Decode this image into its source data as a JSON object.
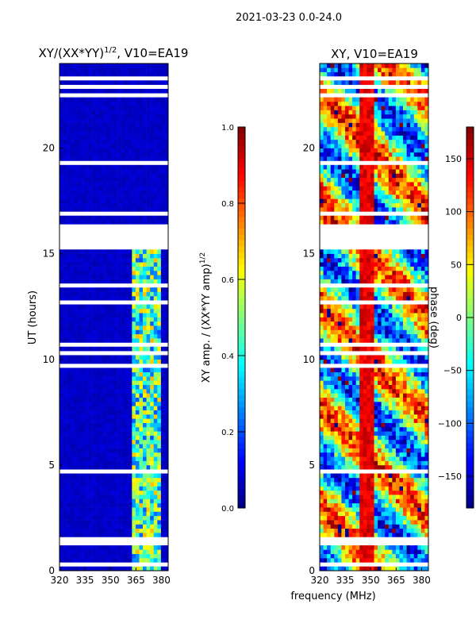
{
  "chart_data": [
    {
      "type": "heatmap",
      "title": "XY/(XX*YY)^1/2, V10=EA19",
      "title_main": "XY/(XX*YY)",
      "title_sup": "1/2",
      "title_tail": ", V10=EA19",
      "xlabel": "",
      "ylabel": "UT (hours)",
      "xlim": [
        320,
        384
      ],
      "ylim": [
        0,
        24
      ],
      "xticks": [
        "320",
        "335",
        "350",
        "365",
        "380"
      ],
      "xtick_values": [
        320,
        335,
        350,
        365,
        380
      ],
      "yticks": [
        "0",
        "5",
        "10",
        "15",
        "20"
      ],
      "ytick_values": [
        0,
        5,
        10,
        15,
        20
      ],
      "colorbar": {
        "label": "XY amp. / (XX*YY amp)",
        "label_sup": "1/2",
        "range": [
          0,
          1
        ],
        "ticks": [
          "0.0",
          "0.2",
          "0.4",
          "0.6",
          "0.8",
          "1.0"
        ],
        "tick_values": [
          0,
          0.2,
          0.4,
          0.6,
          0.8,
          1.0
        ],
        "colormap": "jet"
      },
      "background_value": 0.05,
      "high_band": {
        "freq": [
          362,
          380
        ],
        "ut": [
          0,
          15.2
        ],
        "value_range": [
          0.2,
          0.7
        ]
      },
      "flagged_ut": [
        [
          15.2,
          16.3
        ],
        [
          9.6,
          9.8
        ],
        [
          1.3,
          1.5
        ],
        [
          0.3,
          0.45
        ],
        [
          23.2,
          23.35
        ]
      ]
    },
    {
      "type": "heatmap",
      "title": "XY, V10=EA19",
      "xlabel": "frequency (MHz)",
      "ylabel": "",
      "xlim": [
        320,
        384
      ],
      "ylim": [
        0,
        24
      ],
      "xticks": [
        "320",
        "335",
        "350",
        "365",
        "380"
      ],
      "xtick_values": [
        320,
        335,
        350,
        365,
        380
      ],
      "yticks": [
        "0",
        "5",
        "10",
        "15",
        "20"
      ],
      "ytick_values": [
        0,
        5,
        10,
        15,
        20
      ],
      "colorbar": {
        "label": "phase (deg)",
        "range": [
          -180,
          180
        ],
        "ticks": [
          "−150",
          "−100",
          "−50",
          "0",
          "50",
          "100",
          "150"
        ],
        "tick_values": [
          -150,
          -100,
          -50,
          0,
          50,
          100,
          150
        ],
        "colormap": "jet"
      },
      "flagged_ut": [
        [
          15.2,
          16.3
        ],
        [
          9.6,
          9.8
        ],
        [
          1.3,
          1.5
        ],
        [
          0.3,
          0.45
        ],
        [
          23.2,
          23.35
        ]
      ]
    }
  ],
  "suptitle": "2021-03-23 0.0-24.0"
}
